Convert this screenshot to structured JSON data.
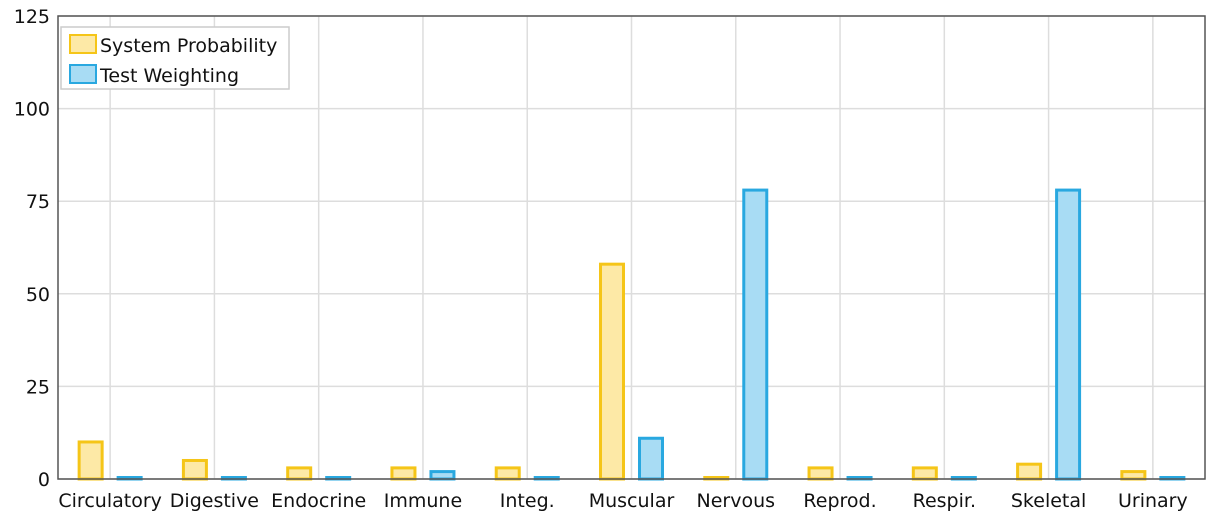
{
  "chart_data": {
    "type": "bar",
    "title": "",
    "xlabel": "",
    "ylabel": "",
    "categories": [
      "Circulatory",
      "Digestive",
      "Endocrine",
      "Immune",
      "Integ.",
      "Muscular",
      "Nervous",
      "Reprod.",
      "Respir.",
      "Skeletal",
      "Urinary"
    ],
    "series": [
      {
        "name": "System Probability",
        "values": [
          10,
          5,
          3,
          3,
          3,
          58,
          0.3,
          3,
          3,
          4,
          2
        ],
        "color": "#f5c518",
        "fill": "#fde9a6"
      },
      {
        "name": "Test Weighting",
        "values": [
          0.3,
          0.3,
          0.3,
          2,
          0.3,
          11,
          78,
          0.3,
          0.3,
          78,
          0.3
        ],
        "color": "#29a8e0",
        "fill": "#a8dcf4"
      }
    ],
    "ylim": [
      0,
      125
    ],
    "yticks": [
      0,
      25,
      50,
      75,
      100,
      125
    ],
    "grid": true,
    "legend_position": "top-left"
  }
}
